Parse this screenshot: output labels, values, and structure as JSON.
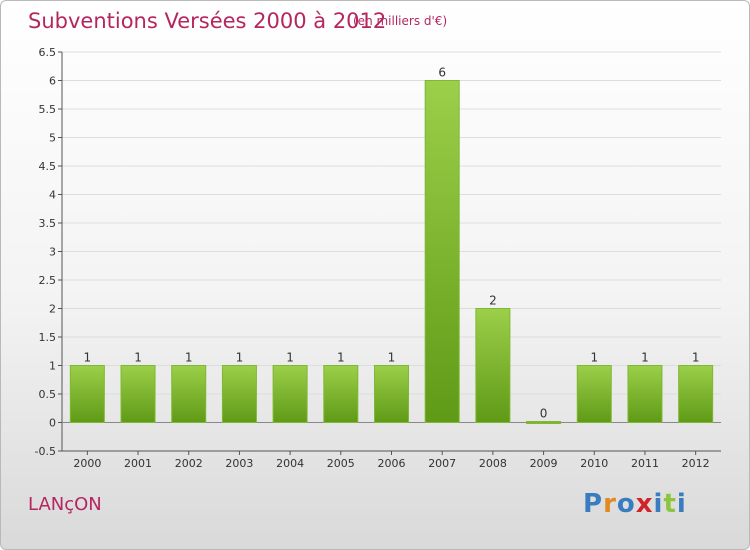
{
  "header": {
    "title": "Subventions Versées 2000 à 2012",
    "subtitle": "(en milliers d'€)"
  },
  "footer": {
    "place": "LANçON",
    "logo": "Proxiti"
  },
  "colors": {
    "title": "#b5265e",
    "bar_light": "#9ccf4a",
    "bar_dark": "#5f9a16",
    "grid": "#dddddd",
    "axis": "#555555",
    "logo_letters": [
      "#3a7cc0",
      "#e08a24",
      "#3a7cc0",
      "#d2232a",
      "#3a7cc0",
      "#8cc63f",
      "#3a7cc0"
    ]
  },
  "chart_data": {
    "type": "bar",
    "title": "Subventions Versées 2000 à 2012",
    "subtitle": "(en milliers d'€)",
    "categories": [
      "2000",
      "2001",
      "2002",
      "2003",
      "2004",
      "2005",
      "2006",
      "2007",
      "2008",
      "2009",
      "2010",
      "2011",
      "2012"
    ],
    "values": [
      1,
      1,
      1,
      1,
      1,
      1,
      1,
      6,
      2,
      0,
      1,
      1,
      1
    ],
    "data_labels": [
      "1",
      "1",
      "1",
      "1",
      "1",
      "1",
      "1",
      "6",
      "2",
      "0",
      "1",
      "1",
      "1"
    ],
    "yticks": [
      "-0.5",
      "0",
      "0.5",
      "1",
      "1.5",
      "2",
      "2.5",
      "3",
      "3.5",
      "4",
      "4.5",
      "5",
      "5.5",
      "6",
      "6.5"
    ],
    "ylim": [
      -0.5,
      6.5
    ],
    "grid": true,
    "xlabel": "",
    "ylabel": ""
  }
}
